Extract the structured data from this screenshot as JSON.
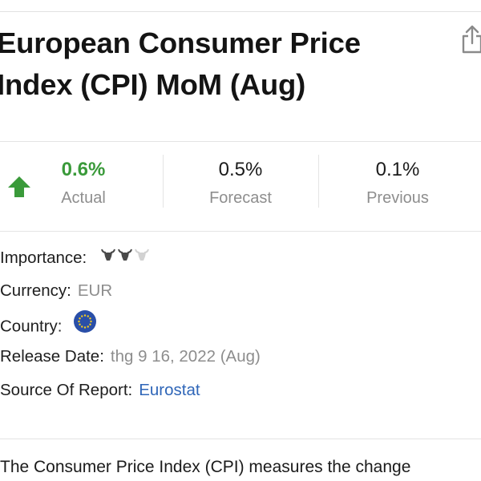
{
  "header": {
    "title": "European Consumer Price Index (CPI) MoM (Aug)",
    "share_icon": "share-icon"
  },
  "stats": {
    "actual": {
      "value": "0.6%",
      "label": "Actual",
      "trend_icon": "arrow-up-icon",
      "color": "#3a9a3a"
    },
    "forecast": {
      "value": "0.5%",
      "label": "Forecast"
    },
    "previous": {
      "value": "0.1%",
      "label": "Previous"
    }
  },
  "details": {
    "importance": {
      "label": "Importance:",
      "level": 2,
      "max": 3,
      "icon": "bull-icon"
    },
    "currency": {
      "label": "Currency:",
      "value": "EUR"
    },
    "country": {
      "label": "Country:",
      "flag_icon": "eu-flag-icon"
    },
    "release_date": {
      "label": "Release Date:",
      "value": "thg 9 16, 2022 (Aug)"
    },
    "source": {
      "label": "Source Of Report:",
      "value": "Eurostat"
    }
  },
  "description": {
    "text": "The Consumer Price Index (CPI) measures the change"
  },
  "colors": {
    "accent_green": "#3a9a3a",
    "link_blue": "#2f66b8",
    "eu_blue": "#2a4fa8",
    "eu_star": "#f3cc22"
  }
}
